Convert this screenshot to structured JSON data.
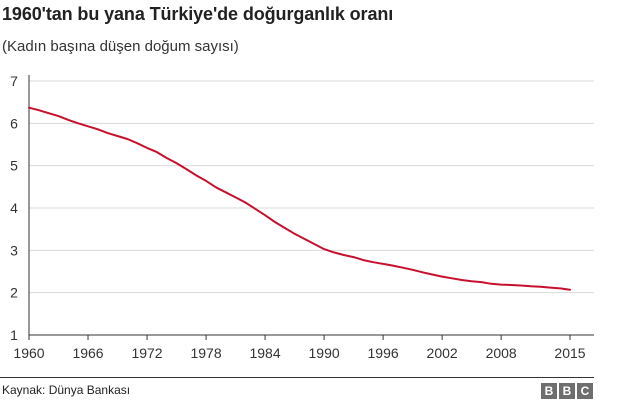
{
  "header": {
    "title": "1960'tan bu yana Türkiye'de doğurganlık oranı",
    "subtitle": "(Kadın başına düşen doğum sayısı)"
  },
  "footer": {
    "source": "Kaynak: Dünya Bankası",
    "logo_letters": [
      "B",
      "B",
      "C"
    ]
  },
  "colors": {
    "line": "#c8102e",
    "grid": "#d9d9d9",
    "axis": "#333333",
    "logo": "#6e6e6e"
  },
  "chart_data": {
    "type": "line",
    "title": "1960'tan bu yana Türkiye'de doğurganlık oranı",
    "subtitle": "(Kadın başına düşen doğum sayısı)",
    "xlabel": "",
    "ylabel": "",
    "xlim": [
      1960,
      2015
    ],
    "ylim": [
      1,
      7
    ],
    "x_ticks": [
      1960,
      1966,
      1972,
      1978,
      1984,
      1990,
      1996,
      2002,
      2008,
      2015
    ],
    "y_ticks": [
      1,
      2,
      3,
      4,
      5,
      6,
      7
    ],
    "grid": "horizontal",
    "legend": "none",
    "series": [
      {
        "x": [
          1960,
          1961,
          1962,
          1963,
          1964,
          1965,
          1966,
          1967,
          1968,
          1969,
          1970,
          1971,
          1972,
          1973,
          1974,
          1975,
          1976,
          1977,
          1978,
          1979,
          1980,
          1981,
          1982,
          1983,
          1984,
          1985,
          1986,
          1987,
          1988,
          1989,
          1990,
          1991,
          1992,
          1993,
          1994,
          1995,
          1996,
          1997,
          1998,
          1999,
          2000,
          2001,
          2002,
          2003,
          2004,
          2005,
          2006,
          2007,
          2008,
          2009,
          2010,
          2011,
          2012,
          2013,
          2014,
          2015
        ],
        "values": [
          6.37,
          6.31,
          6.24,
          6.17,
          6.08,
          6.0,
          5.93,
          5.86,
          5.77,
          5.7,
          5.63,
          5.53,
          5.42,
          5.32,
          5.18,
          5.06,
          4.92,
          4.77,
          4.64,
          4.49,
          4.37,
          4.25,
          4.13,
          3.98,
          3.83,
          3.67,
          3.53,
          3.39,
          3.27,
          3.15,
          3.03,
          2.95,
          2.89,
          2.84,
          2.77,
          2.72,
          2.68,
          2.64,
          2.59,
          2.54,
          2.48,
          2.43,
          2.38,
          2.34,
          2.3,
          2.27,
          2.25,
          2.21,
          2.19,
          2.18,
          2.17,
          2.15,
          2.14,
          2.12,
          2.1,
          2.07
        ]
      }
    ]
  }
}
